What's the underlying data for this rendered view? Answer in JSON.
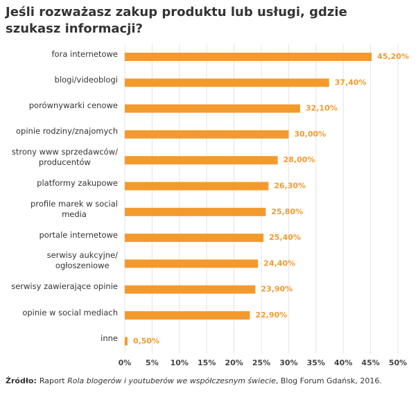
{
  "chart_data": {
    "type": "hbar",
    "title": "Jeśli rozważasz zakup produktu lub usługi, gdzie szukasz informacji?",
    "categories": [
      "fora internetowe",
      "blogi/videoblogi",
      "porównywarki cenowe",
      "opinie rodziny/znajomych",
      "strony www sprzedawców/\nproducentów",
      "platformy zakupowe",
      "profile marek w social\nmedia",
      "portale internetowe",
      "serwisy aukcyjne/\nogłoszeniowe",
      "serwisy zawierające opinie",
      "opinie w social mediach",
      "inne"
    ],
    "values": [
      45.2,
      37.4,
      32.1,
      30.0,
      28.0,
      26.3,
      25.8,
      25.4,
      24.4,
      23.9,
      22.9,
      0.5
    ],
    "value_labels": [
      "45,20%",
      "37,40%",
      "32,10%",
      "30,00%",
      "28,00%",
      "26,30%",
      "25,80%",
      "25,40%",
      "24,40%",
      "23,90%",
      "22,90%",
      "0,50%"
    ],
    "color": "#f39a2e",
    "xlim": [
      0,
      50
    ],
    "xticks": [
      {
        "value": 0,
        "label": "0%"
      },
      {
        "value": 5,
        "label": "5%"
      },
      {
        "value": 10,
        "label": "10%"
      },
      {
        "value": 15,
        "label": "15%"
      },
      {
        "value": 20,
        "label": "20%"
      },
      {
        "value": 25,
        "label": "25%"
      },
      {
        "value": 30,
        "label": "30%"
      },
      {
        "value": 35,
        "label": "35%"
      },
      {
        "value": 40,
        "label": "40%"
      },
      {
        "value": 45,
        "label": "45%"
      },
      {
        "value": 50,
        "label": "50%"
      }
    ],
    "grid": true,
    "source_label": "Źródło:",
    "source_prefix": "Raport",
    "source_title": "Rola blogerów i youtuberów we współczesnym świecie",
    "source_suffix": ", Blog Forum Gdańsk, 2016."
  }
}
